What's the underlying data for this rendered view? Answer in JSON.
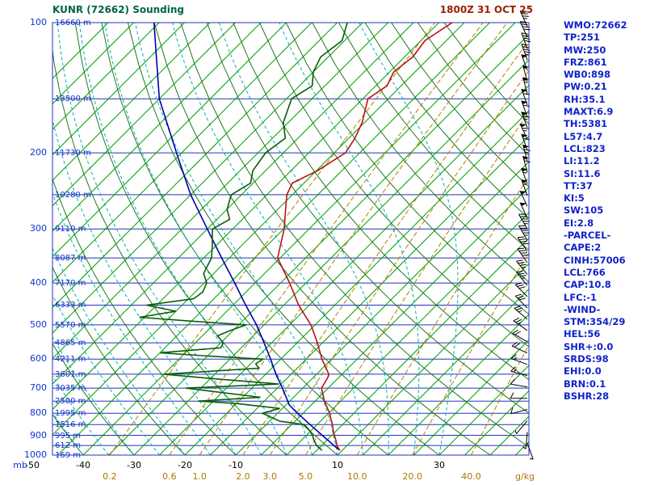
{
  "header": {
    "title": "KUNR (72662) Sounding",
    "datetime": "1800Z 31 OCT 25"
  },
  "axes": {
    "pressure_unit_label": "mb",
    "mixing_unit_label": "g/kg",
    "pressure_tick_labels": [
      "100",
      "200",
      "300",
      "400",
      "500",
      "600",
      "700",
      "800",
      "900",
      "1000"
    ],
    "pressure_grid_lines": [
      100,
      150,
      200,
      250,
      300,
      350,
      400,
      450,
      500,
      550,
      600,
      650,
      700,
      750,
      800,
      850,
      900,
      950,
      1000
    ],
    "temp_tick_labels": [
      "-50",
      "-40",
      "-30",
      "-20",
      "-10",
      "10",
      "30"
    ],
    "mixing_ratio_labels": [
      "0.2",
      "0.6",
      "1.0",
      "2.0",
      "3.0",
      "5.0",
      "10.0",
      "20.0",
      "40.0"
    ],
    "height_labels": [
      {
        "p": 100,
        "text": "16660 m"
      },
      {
        "p": 150,
        "text": "13500 m"
      },
      {
        "p": 200,
        "text": "11730 m"
      },
      {
        "p": 250,
        "text": "10280 m"
      },
      {
        "p": 300,
        "text": "9110 m"
      },
      {
        "p": 350,
        "text": "8087 m"
      },
      {
        "p": 400,
        "text": "7170 m"
      },
      {
        "p": 450,
        "text": "6333 m"
      },
      {
        "p": 500,
        "text": "5570 m"
      },
      {
        "p": 550,
        "text": "4865 m"
      },
      {
        "p": 600,
        "text": "4211 m"
      },
      {
        "p": 650,
        "text": "3601 m"
      },
      {
        "p": 700,
        "text": "3035 m"
      },
      {
        "p": 750,
        "text": "2500 m"
      },
      {
        "p": 800,
        "text": "1995 m"
      },
      {
        "p": 850,
        "text": "1516 m"
      },
      {
        "p": 900,
        "text": "995 m"
      },
      {
        "p": 950,
        "text": "612 m"
      },
      {
        "p": 1000,
        "text": "169 m"
      }
    ]
  },
  "stats": [
    "WMO:72662",
    "TP:251",
    "MW:250",
    "FRZ:861",
    "WB0:898",
    "PW:0.21",
    "RH:35.1",
    "MAXT:6.9",
    "TH:5381",
    "L57:4.7",
    "LCL:823",
    "LI:11.2",
    "SI:11.6",
    "TT:37",
    "KI:5",
    "SW:105",
    "EI:2.8",
    "-PARCEL-",
    "CAPE:2",
    "CINH:57006",
    "LCL:766",
    "CAP:10.8",
    "LFC:-1",
    "-WIND-",
    "STM:354/29",
    "HEL:56",
    "SHR+:0.0",
    "SRDS:98",
    "EHI:0.0",
    "BRN:0.1",
    "BSHR:28"
  ],
  "chart_data": {
    "type": "skewt-logp",
    "title": "KUNR (72662) Sounding",
    "valid_time": "1800Z 31 OCT 25",
    "pressure_range_mb": [
      100,
      1000
    ],
    "temp_axis_c": {
      "min": -120,
      "max": 45,
      "isotherm_step": 5,
      "skew_deg": 45
    },
    "dry_adiabat_theta_c": {
      "min": -40,
      "max": 150,
      "step": 10
    },
    "moist_adiabat_start_c": {
      "min": -40,
      "max": 30,
      "step": 5
    },
    "temp_profile_p_c": [
      [
        975,
        9.5
      ],
      [
        950,
        8.0
      ],
      [
        925,
        6.8
      ],
      [
        900,
        5.5
      ],
      [
        875,
        4.2
      ],
      [
        850,
        3.0
      ],
      [
        800,
        0.2
      ],
      [
        750,
        -3.2
      ],
      [
        700,
        -6.3
      ],
      [
        660,
        -7.2
      ],
      [
        650,
        -7.6
      ],
      [
        600,
        -11.9
      ],
      [
        550,
        -16.0
      ],
      [
        500,
        -20.8
      ],
      [
        450,
        -27.1
      ],
      [
        400,
        -33.2
      ],
      [
        350,
        -40.5
      ],
      [
        300,
        -44.9
      ],
      [
        270,
        -48.5
      ],
      [
        250,
        -51.1
      ],
      [
        235,
        -52.3
      ],
      [
        220,
        -49.8
      ],
      [
        200,
        -47.8
      ],
      [
        185,
        -48.8
      ],
      [
        170,
        -50.5
      ],
      [
        150,
        -54.0
      ],
      [
        140,
        -52.8
      ],
      [
        130,
        -54.2
      ],
      [
        120,
        -53.4
      ],
      [
        110,
        -54.2
      ],
      [
        100,
        -52.4
      ]
    ],
    "dewpoint_profile_p_c": [
      [
        975,
        6.0
      ],
      [
        950,
        4.0
      ],
      [
        925,
        2.5
      ],
      [
        900,
        1.2
      ],
      [
        875,
        -0.5
      ],
      [
        850,
        -2.5
      ],
      [
        835,
        -8.0
      ],
      [
        800,
        -13.0
      ],
      [
        780,
        -10.5
      ],
      [
        760,
        -20.0
      ],
      [
        750,
        -28.0
      ],
      [
        735,
        -16.5
      ],
      [
        700,
        -33.0
      ],
      [
        685,
        -15.5
      ],
      [
        665,
        -30.0
      ],
      [
        650,
        -40.0
      ],
      [
        630,
        -22.5
      ],
      [
        615,
        -24.0
      ],
      [
        600,
        -23.5
      ],
      [
        590,
        -35.0
      ],
      [
        580,
        -45.0
      ],
      [
        565,
        -34.0
      ],
      [
        550,
        -34.5
      ],
      [
        530,
        -37.0
      ],
      [
        515,
        -35.5
      ],
      [
        500,
        -33.5
      ],
      [
        490,
        -45.0
      ],
      [
        480,
        -56.0
      ],
      [
        465,
        -50.0
      ],
      [
        450,
        -57.0
      ],
      [
        435,
        -49.0
      ],
      [
        420,
        -48.5
      ],
      [
        400,
        -49.5
      ],
      [
        380,
        -52.0
      ],
      [
        350,
        -53.5
      ],
      [
        330,
        -55.5
      ],
      [
        300,
        -59.0
      ],
      [
        285,
        -57.5
      ],
      [
        270,
        -60.0
      ],
      [
        250,
        -62.0
      ],
      [
        235,
        -60.5
      ],
      [
        220,
        -62.5
      ],
      [
        200,
        -63.5
      ],
      [
        185,
        -62.5
      ],
      [
        170,
        -66.0
      ],
      [
        150,
        -69.0
      ],
      [
        140,
        -67.5
      ],
      [
        130,
        -70.0
      ],
      [
        120,
        -71.5
      ],
      [
        110,
        -70.5
      ],
      [
        100,
        -73.0
      ]
    ],
    "parcel_profile_p_c": [
      [
        975,
        9.5
      ],
      [
        950,
        7.4
      ],
      [
        900,
        3.1
      ],
      [
        850,
        -1.4
      ],
      [
        800,
        -6.1
      ],
      [
        766,
        -9.3
      ],
      [
        700,
        -14.0
      ],
      [
        650,
        -18.0
      ],
      [
        600,
        -22.0
      ],
      [
        550,
        -26.5
      ],
      [
        500,
        -31.5
      ],
      [
        450,
        -37.5
      ],
      [
        400,
        -44.0
      ],
      [
        350,
        -51.5
      ],
      [
        300,
        -60.0
      ],
      [
        250,
        -70.0
      ],
      [
        200,
        -81.0
      ],
      [
        150,
        -95.0
      ],
      [
        100,
        -111.0
      ]
    ],
    "wind_barbs": [
      {
        "p": 102,
        "dir": 335,
        "spd": 35
      },
      {
        "p": 108,
        "dir": 335,
        "spd": 40
      },
      {
        "p": 115,
        "dir": 340,
        "spd": 40
      },
      {
        "p": 122,
        "dir": 340,
        "spd": 45
      },
      {
        "p": 129,
        "dir": 340,
        "spd": 50
      },
      {
        "p": 137,
        "dir": 345,
        "spd": 50
      },
      {
        "p": 146,
        "dir": 345,
        "spd": 55
      },
      {
        "p": 155,
        "dir": 340,
        "spd": 60
      },
      {
        "p": 165,
        "dir": 340,
        "spd": 60
      },
      {
        "p": 175,
        "dir": 340,
        "spd": 65
      },
      {
        "p": 186,
        "dir": 335,
        "spd": 65
      },
      {
        "p": 197,
        "dir": 340,
        "spd": 60
      },
      {
        "p": 209,
        "dir": 345,
        "spd": 65
      },
      {
        "p": 222,
        "dir": 345,
        "spd": 60
      },
      {
        "p": 236,
        "dir": 340,
        "spd": 55
      },
      {
        "p": 251,
        "dir": 340,
        "spd": 55
      },
      {
        "p": 266,
        "dir": 335,
        "spd": 50
      },
      {
        "p": 283,
        "dir": 335,
        "spd": 50
      },
      {
        "p": 300,
        "dir": 330,
        "spd": 45
      },
      {
        "p": 319,
        "dir": 330,
        "spd": 45
      },
      {
        "p": 338,
        "dir": 325,
        "spd": 40
      },
      {
        "p": 359,
        "dir": 325,
        "spd": 40
      },
      {
        "p": 382,
        "dir": 320,
        "spd": 35
      },
      {
        "p": 405,
        "dir": 320,
        "spd": 35
      },
      {
        "p": 430,
        "dir": 315,
        "spd": 30
      },
      {
        "p": 457,
        "dir": 315,
        "spd": 30
      },
      {
        "p": 485,
        "dir": 310,
        "spd": 25
      },
      {
        "p": 515,
        "dir": 305,
        "spd": 25
      },
      {
        "p": 547,
        "dir": 300,
        "spd": 20
      },
      {
        "p": 581,
        "dir": 295,
        "spd": 20
      },
      {
        "p": 617,
        "dir": 290,
        "spd": 15
      },
      {
        "p": 655,
        "dir": 285,
        "spd": 15
      },
      {
        "p": 696,
        "dir": 280,
        "spd": 10
      },
      {
        "p": 739,
        "dir": 270,
        "spd": 10
      },
      {
        "p": 784,
        "dir": 255,
        "spd": 10
      },
      {
        "p": 833,
        "dir": 220,
        "spd": 5
      },
      {
        "p": 884,
        "dir": 185,
        "spd": 5
      },
      {
        "p": 939,
        "dir": 160,
        "spd": 5
      }
    ],
    "colors": {
      "pressure_line": "#2233bb",
      "isotherm": "#00a000",
      "dry_adiabat": "#207820",
      "moist_adiabat": "#00b0b0",
      "mixing_ratio": "#b08000",
      "temperature": "#bb1111",
      "dewpoint": "#085d08",
      "parcel": "#0000aa",
      "wind_barb": "#000000",
      "title": "#006644",
      "datetime": "#992200",
      "stats_text": "#1122cc",
      "pressure_label": "#1133cc",
      "height_label": "#1133cc",
      "temp_label": "#000000",
      "mixing_label": "#aa7700"
    }
  }
}
